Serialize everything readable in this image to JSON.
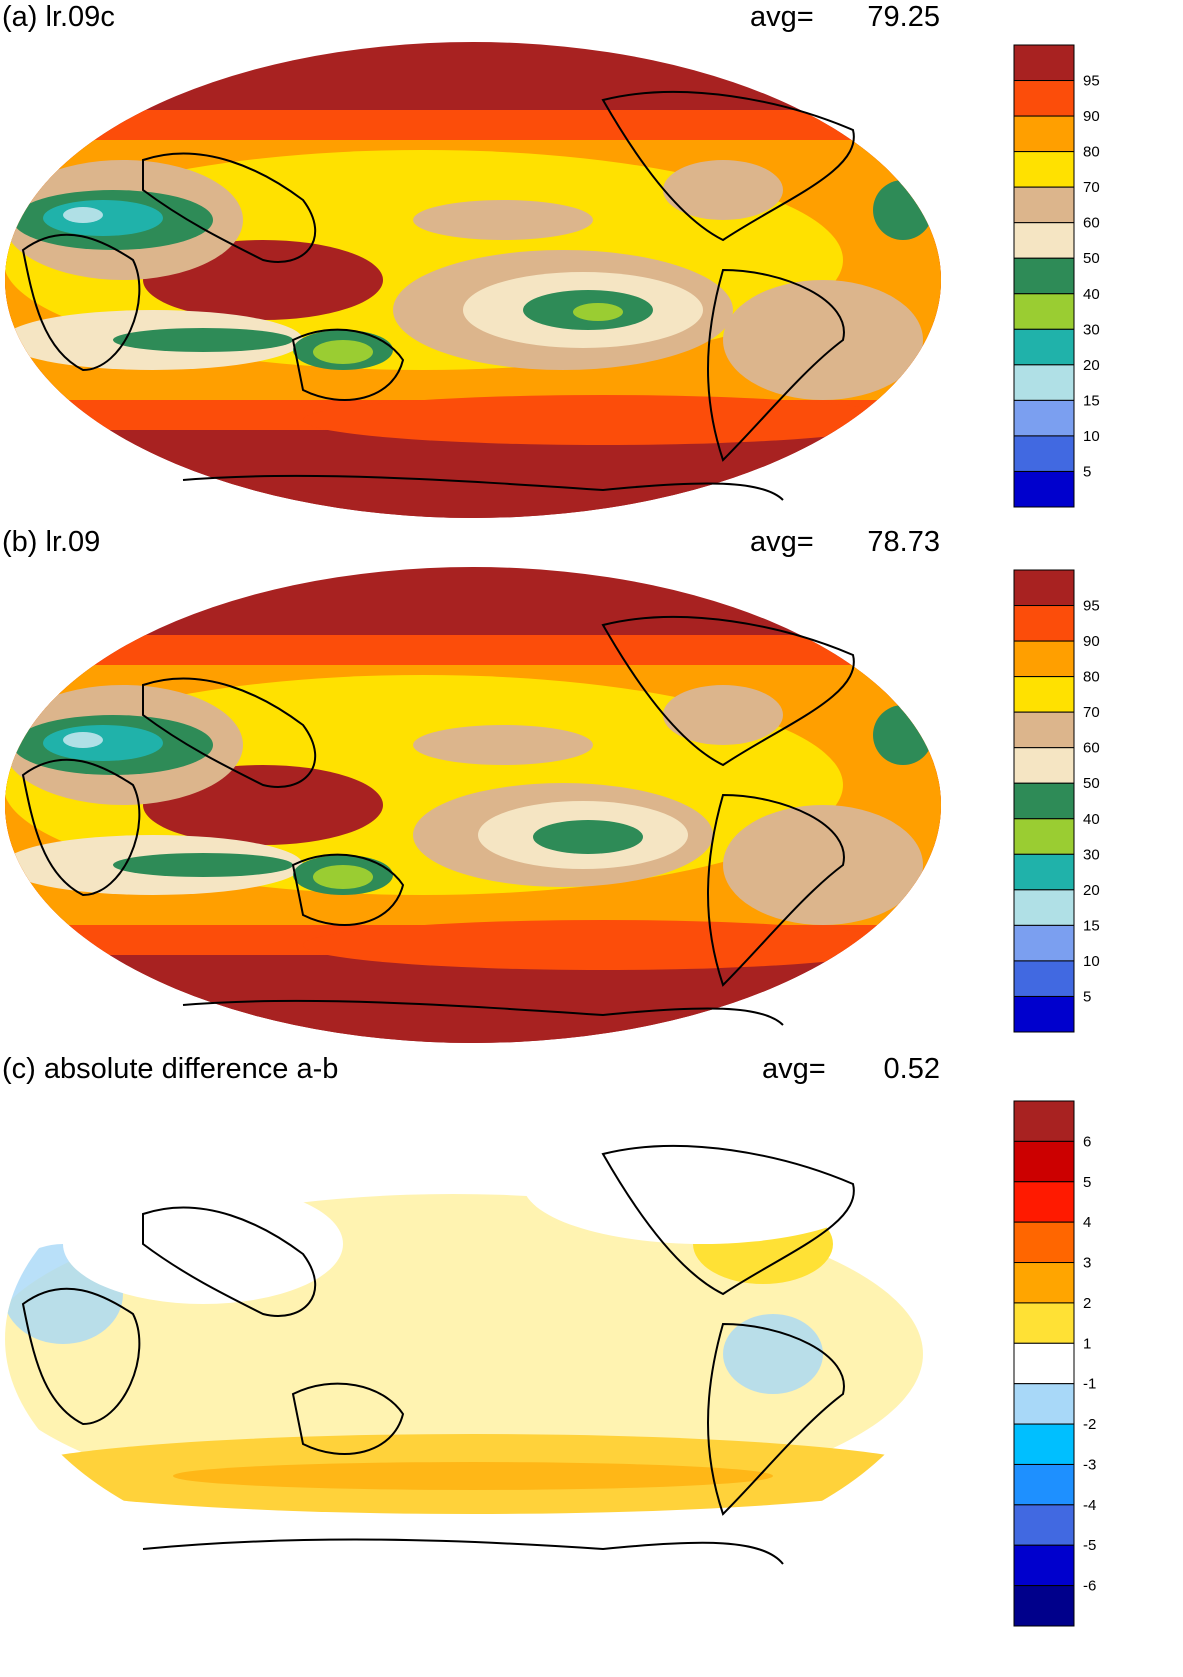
{
  "panels": [
    {
      "title": "(a) lr.09c",
      "avg_label": "avg=",
      "avg_value": "79.25",
      "colorbar": {
        "labels": [
          "95",
          "90",
          "80",
          "70",
          "60",
          "50",
          "40",
          "30",
          "20",
          "15",
          "10",
          "5"
        ],
        "colors": [
          "#a82221",
          "#fc4d0a",
          "#ff9f00",
          "#ffe100",
          "#dcb58c",
          "#f5e5c3",
          "#2e8b57",
          "#9acd32",
          "#20b2aa",
          "#b0e0e6",
          "#7b9ff0",
          "#4169e1",
          "#0000cd"
        ]
      }
    },
    {
      "title": "(b) lr.09",
      "avg_label": "avg=",
      "avg_value": "78.73",
      "colorbar": {
        "labels": [
          "95",
          "90",
          "80",
          "70",
          "60",
          "50",
          "40",
          "30",
          "20",
          "15",
          "10",
          "5"
        ],
        "colors": [
          "#a82221",
          "#fc4d0a",
          "#ff9f00",
          "#ffe100",
          "#dcb58c",
          "#f5e5c3",
          "#2e8b57",
          "#9acd32",
          "#20b2aa",
          "#b0e0e6",
          "#7b9ff0",
          "#4169e1",
          "#0000cd"
        ]
      }
    },
    {
      "title": "(c) absolute difference a-b",
      "avg_label": "avg=",
      "avg_value": "0.52",
      "colorbar": {
        "labels": [
          "6",
          "5",
          "4",
          "3",
          "2",
          "1",
          "-1",
          "-2",
          "-3",
          "-4",
          "-5",
          "-6"
        ],
        "colors": [
          "#a82221",
          "#cc0000",
          "#ff1a00",
          "#ff6600",
          "#ffa500",
          "#ffe135",
          "#ffffff",
          "#a8d8f8",
          "#00bfff",
          "#1e90ff",
          "#4169e1",
          "#0000cd",
          "#00008b"
        ]
      }
    }
  ]
}
